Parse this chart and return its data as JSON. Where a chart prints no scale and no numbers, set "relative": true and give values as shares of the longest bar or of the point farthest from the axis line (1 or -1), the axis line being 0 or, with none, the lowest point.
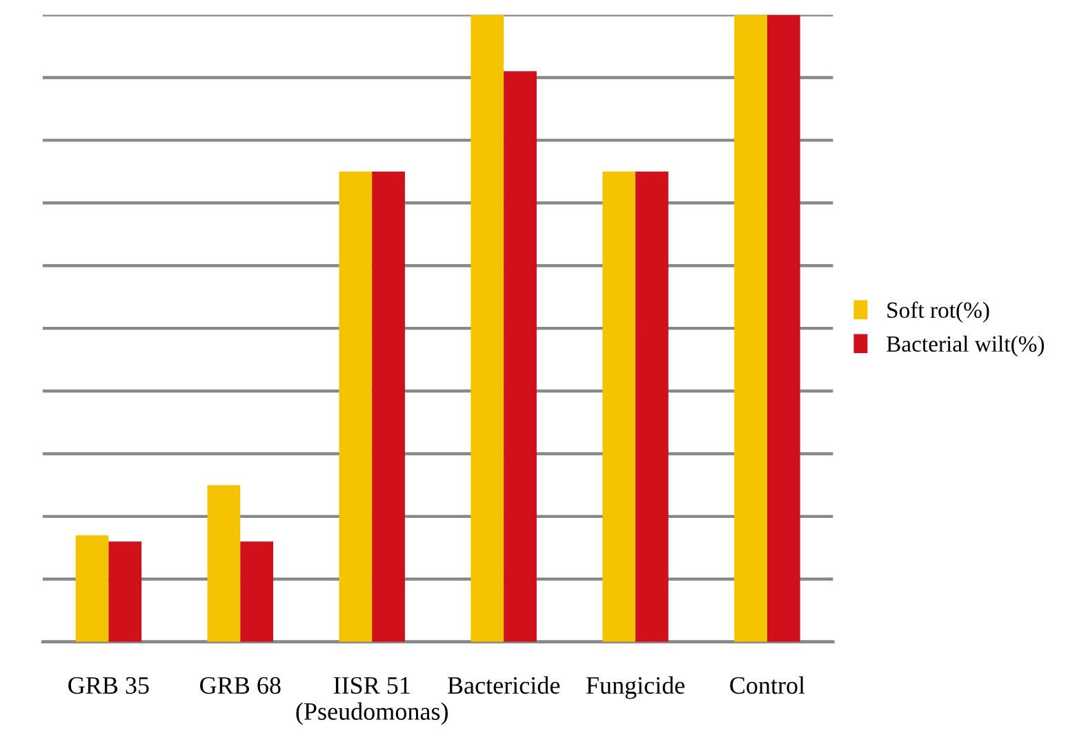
{
  "chart_data": {
    "type": "bar",
    "relative": true,
    "grid": "y",
    "legend": "right",
    "tick_labels": "x",
    "categories": [
      "GRB 35",
      "GRB 68",
      "IISR 51\n(Pseudomonas)",
      "Bactericide",
      "Fungicide",
      "Control"
    ],
    "series": [
      {
        "name": "Soft rot(%)",
        "color": "#f5c400",
        "values": [
          0.17,
          0.25,
          0.75,
          1.0,
          0.75,
          1.0
        ]
      },
      {
        "name": "Bacterial wilt(%)",
        "color": "#d0101a",
        "values": [
          0.16,
          0.16,
          0.75,
          0.91,
          0.75,
          1.0
        ]
      }
    ]
  }
}
